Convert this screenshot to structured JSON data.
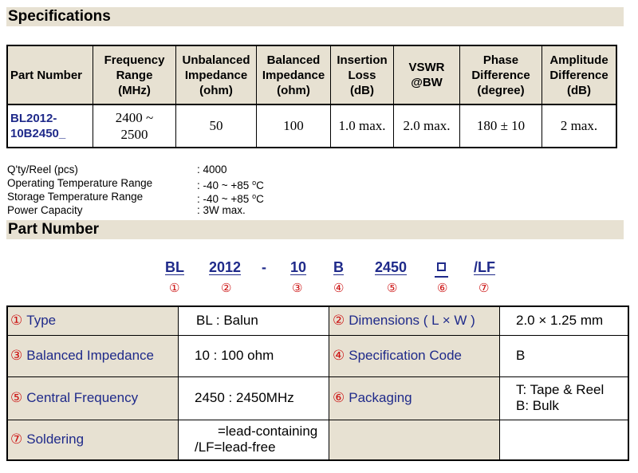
{
  "sections": {
    "specifications": "Specifications",
    "part_number": "Part Number"
  },
  "spec_table": {
    "headers": [
      "Part Number",
      "Frequency Range (MHz)",
      "Unbalanced Impedance (ohm)",
      "Balanced Impedance (ohm)",
      "Insertion Loss (dB)",
      "VSWR @BW",
      "Phase Difference (degree)",
      "Amplitude Difference (dB)"
    ],
    "header_lines": [
      [
        "Part Number"
      ],
      [
        "Frequency",
        "Range",
        "(MHz)"
      ],
      [
        "Unbalanced",
        "Impedance",
        "(ohm)"
      ],
      [
        "Balanced",
        "Impedance",
        "(ohm)"
      ],
      [
        "Insertion",
        "Loss",
        "(dB)"
      ],
      [
        "VSWR",
        "@BW"
      ],
      [
        "Phase",
        "Difference",
        "(degree)"
      ],
      [
        "Amplitude",
        "Difference",
        "(dB)"
      ]
    ],
    "row": {
      "part_number_line1": "BL2012-",
      "part_number_line2": "10B2450_",
      "frequency_line1": "2400 ~",
      "frequency_line2": "2500",
      "unbalanced": "50",
      "balanced": "100",
      "insertion_loss": "1.0 max.",
      "vswr": "2.0 max.",
      "phase": "180 ± 10",
      "amplitude": "2 max."
    }
  },
  "info": [
    {
      "label": "Q'ty/Reel (pcs)",
      "value": ": 4000"
    },
    {
      "label": "Operating Temperature Range",
      "value": ": -40 ~ +85 ",
      "unit": "o",
      "unit_tail": "C"
    },
    {
      "label": "Storage Temperature Range",
      "value": ": -40 ~ +85 ",
      "unit": "o",
      "unit_tail": "C"
    },
    {
      "label": "Power Capacity",
      "value": ": 3W max."
    }
  ],
  "code": {
    "parts": [
      "BL",
      "2012",
      "-",
      "10",
      "B",
      "2450",
      "/LF"
    ],
    "markers": [
      "①",
      "②",
      "③",
      "④",
      "⑤",
      "⑥",
      "⑦"
    ]
  },
  "legend": {
    "type_num": "①",
    "type_label": "Type",
    "type_value": "BL : Balun",
    "dim_num": "②",
    "dim_label": "Dimensions ( L × W )",
    "dim_value": "2.0 × 1.25 mm",
    "bal_num": "③",
    "bal_label": "Balanced Impedance",
    "bal_value": "10 : 100 ohm",
    "spec_num": "④",
    "spec_label": "Specification Code",
    "spec_value": "B",
    "freq_num": "⑤",
    "freq_label": "Central Frequency",
    "freq_value": "2450 : 2450MHz",
    "pack_num": "⑥",
    "pack_label": "Packaging",
    "pack_value_1": "T: Tape & Reel",
    "pack_value_2": "B: Bulk",
    "sold_num": "⑦",
    "sold_label": "Soldering",
    "sold_value_1": "=lead-containing",
    "sold_value_2": "/LF=lead-free"
  },
  "colors": {
    "header_bg": "#e7e1d2",
    "accent_blue": "#1f2a8a",
    "marker_red": "#cc1111"
  }
}
